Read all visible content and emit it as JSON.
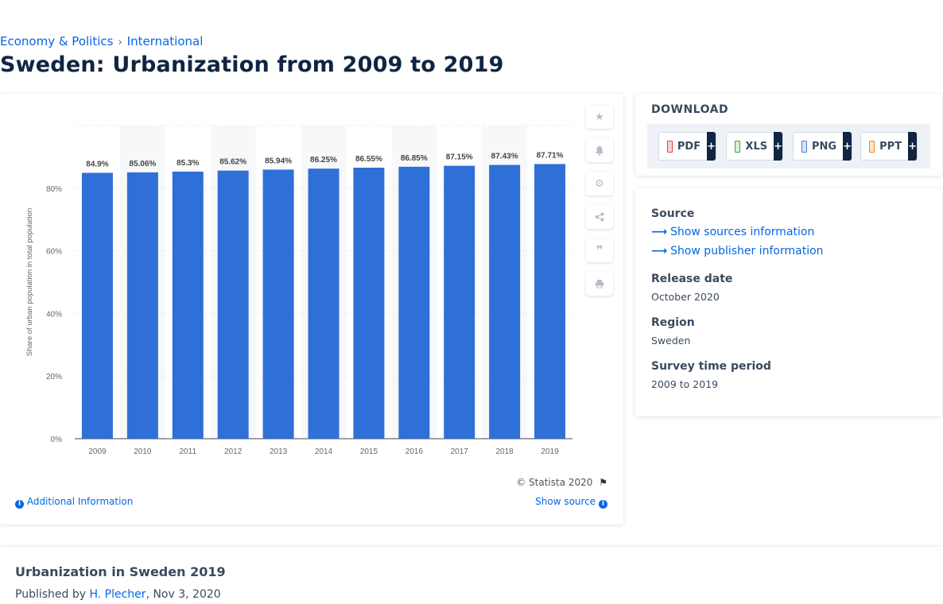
{
  "breadcrumb": {
    "item1": "Economy & Politics",
    "separator": "›",
    "item2": "International"
  },
  "page_title": "Sweden: Urbanization from 2009 to 2019",
  "chart_tools": [
    "star-icon",
    "bell-icon",
    "gear-icon",
    "share-icon",
    "quote-icon",
    "print-icon"
  ],
  "chart_footer": {
    "credit": "© Statista 2020",
    "additional_info": "Additional Information",
    "show_source": "Show source"
  },
  "download": {
    "title": "DOWNLOAD",
    "formats": [
      {
        "label": "PDF",
        "plus": "+",
        "color": "#e0453a"
      },
      {
        "label": "XLS",
        "plus": "+",
        "color": "#3fa33f"
      },
      {
        "label": "PNG",
        "plus": "+",
        "color": "#4a7fd4"
      },
      {
        "label": "PPT",
        "plus": "+",
        "color": "#e8872a"
      }
    ]
  },
  "info": {
    "source_label": "Source",
    "sources_link": "Show sources information",
    "publisher_link": "Show publisher information",
    "release_label": "Release date",
    "release_value": "October 2020",
    "region_label": "Region",
    "region_value": "Sweden",
    "period_label": "Survey time period",
    "period_value": "2009 to 2019"
  },
  "article": {
    "title": "Urbanization in Sweden 2019",
    "published_prefix": "Published by",
    "author": "H. Plecher",
    "date": ", Nov 3, 2020"
  },
  "colors": {
    "bar": "#2f6fd8",
    "accent": "#0666e5",
    "title": "#0f2542"
  },
  "chart_data": {
    "type": "bar",
    "categories": [
      "2009",
      "2010",
      "2011",
      "2012",
      "2013",
      "2014",
      "2015",
      "2016",
      "2017",
      "2018",
      "2019"
    ],
    "values": [
      84.9,
      85.06,
      85.3,
      85.62,
      85.94,
      86.25,
      86.55,
      86.85,
      87.15,
      87.43,
      87.71
    ],
    "value_labels": [
      "84.9%",
      "85.06%",
      "85.3%",
      "85.62%",
      "85.94%",
      "86.25%",
      "86.55%",
      "86.85%",
      "87.15%",
      "87.43%",
      "87.71%"
    ],
    "ylabel": "Share of urban population in total population",
    "yticks": [
      "0%",
      "20%",
      "40%",
      "60%",
      "80%"
    ],
    "ylim": [
      0,
      100
    ],
    "grid": true,
    "legend": "none"
  }
}
